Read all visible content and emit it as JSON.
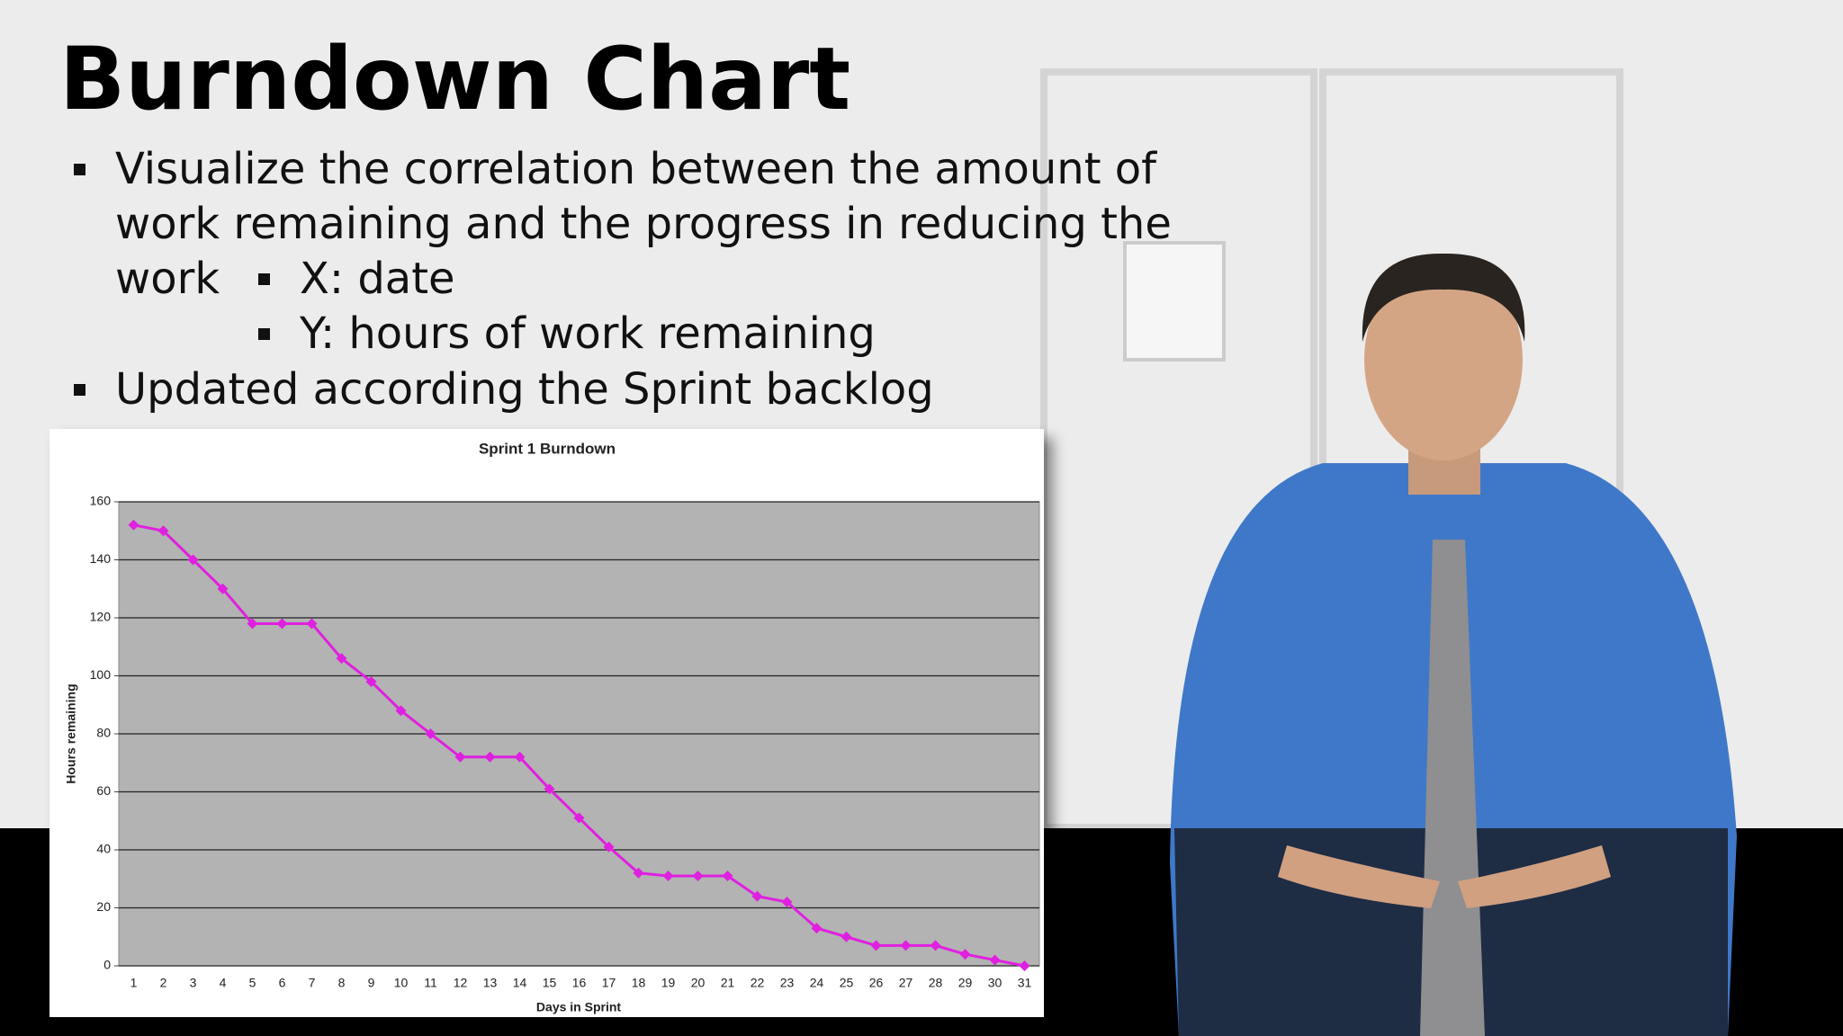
{
  "slide_title": "Burndown Chart",
  "bullets": [
    {
      "text": "Visualize the correlation between the amount of work remaining and the progress in reducing the work",
      "sub": [
        "X: date",
        "Y: hours of work remaining"
      ]
    },
    {
      "text": "Updated according the Sprint backlog",
      "sub": []
    }
  ],
  "chart_data": {
    "type": "line",
    "title": "Sprint 1 Burndown",
    "x_label": "Days in Sprint",
    "y_label": "Hours remaining",
    "categories": [
      "1",
      "2",
      "3",
      "4",
      "5",
      "6",
      "7",
      "8",
      "9",
      "10",
      "11",
      "12",
      "13",
      "14",
      "15",
      "16",
      "17",
      "18",
      "19",
      "20",
      "21",
      "22",
      "23",
      "24",
      "25",
      "26",
      "27",
      "28",
      "29",
      "30",
      "31"
    ],
    "series": [
      {
        "name": "Hours remaining",
        "color": "#e020e0",
        "values": [
          152,
          150,
          140,
          130,
          118,
          118,
          118,
          106,
          98,
          88,
          80,
          72,
          72,
          72,
          61,
          51,
          41,
          32,
          31,
          31,
          31,
          24,
          22,
          13,
          10,
          7,
          7,
          7,
          4,
          2,
          0
        ]
      }
    ],
    "ylim": [
      0,
      160
    ],
    "yticks": [
      0,
      20,
      40,
      60,
      80,
      100,
      120,
      140,
      160
    ],
    "grid": true,
    "legend": false
  }
}
